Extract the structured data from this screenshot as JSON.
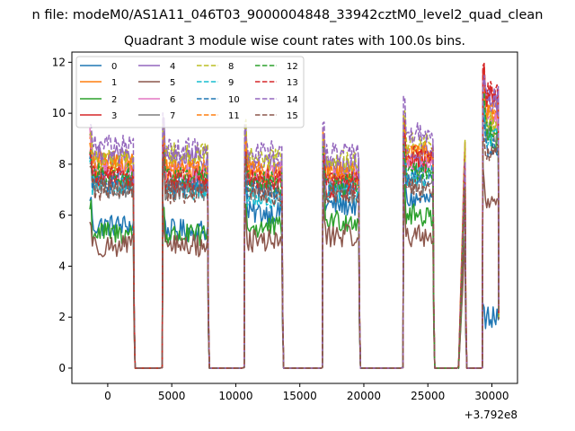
{
  "chart_data": {
    "type": "line",
    "suptitle": "n file: modeM0/AS1A11_046T03_9000004848_33942cztM0_level2_quad_clean",
    "title": "Quadrant 3 module wise count rates with 100.0s bins.",
    "xlabel": "",
    "ylabel": "",
    "x_offset_label": "+3.792e8",
    "xlim": [
      -2800,
      32000
    ],
    "ylim": [
      -0.6,
      12.4
    ],
    "xticks": [
      0,
      5000,
      10000,
      15000,
      20000,
      25000,
      30000
    ],
    "xtick_labels": [
      "0",
      "5000",
      "10000",
      "15000",
      "20000",
      "25000",
      "30000"
    ],
    "yticks": [
      0,
      2,
      4,
      6,
      8,
      10,
      12
    ],
    "ytick_labels": [
      "0",
      "2",
      "4",
      "6",
      "8",
      "10",
      "12"
    ],
    "grid": false,
    "legend": {
      "position": "top-left",
      "columns": 4
    },
    "segments": [
      {
        "start": -1400,
        "end": 2000
      },
      {
        "start": 4300,
        "end": 7800
      },
      {
        "start": 10700,
        "end": 13600
      },
      {
        "start": 16800,
        "end": 19600
      },
      {
        "start": 23100,
        "end": 25400
      },
      {
        "start": 27400,
        "end": 27900
      },
      {
        "start": 29300,
        "end": 30500
      }
    ],
    "gap_level": 0.0,
    "series": [
      {
        "name": "0",
        "color": "#1f77b4",
        "dash": "solid",
        "values": [
          5.6,
          5.4,
          6.1,
          6.4,
          6.6,
          5.0,
          2.0
        ]
      },
      {
        "name": "1",
        "color": "#ff7f0e",
        "dash": "solid",
        "values": [
          8.1,
          7.8,
          7.8,
          7.7,
          8.3,
          8.6,
          10.0
        ]
      },
      {
        "name": "2",
        "color": "#2ca02c",
        "dash": "solid",
        "values": [
          5.3,
          5.2,
          5.5,
          5.8,
          6.0,
          5.2,
          9.0
        ]
      },
      {
        "name": "3",
        "color": "#d62728",
        "dash": "solid",
        "values": [
          7.4,
          7.2,
          7.3,
          7.1,
          8.1,
          9.0,
          10.6
        ]
      },
      {
        "name": "4",
        "color": "#9467bd",
        "dash": "solid",
        "values": [
          8.3,
          8.2,
          8.0,
          7.8,
          8.4,
          7.0,
          10.4
        ]
      },
      {
        "name": "5",
        "color": "#8c564b",
        "dash": "solid",
        "values": [
          4.8,
          4.8,
          5.0,
          5.2,
          5.2,
          5.0,
          6.6
        ]
      },
      {
        "name": "6",
        "color": "#e377c2",
        "dash": "solid",
        "values": [
          7.7,
          7.6,
          7.6,
          7.4,
          7.9,
          7.6,
          9.8
        ]
      },
      {
        "name": "7",
        "color": "#7f7f7f",
        "dash": "solid",
        "values": [
          7.1,
          7.0,
          7.0,
          6.9,
          7.2,
          7.2,
          9.2
        ]
      },
      {
        "name": "8",
        "color": "#bcbd22",
        "dash": "dashed",
        "values": [
          8.2,
          8.4,
          8.2,
          8.1,
          8.8,
          8.8,
          9.6
        ]
      },
      {
        "name": "9",
        "color": "#17becf",
        "dash": "dashed",
        "values": [
          7.2,
          7.0,
          6.7,
          6.9,
          7.5,
          7.4,
          9.0
        ]
      },
      {
        "name": "10",
        "color": "#1f77b4",
        "dash": "dashed",
        "values": [
          7.3,
          7.1,
          7.0,
          7.2,
          7.6,
          7.4,
          8.6
        ]
      },
      {
        "name": "11",
        "color": "#ff7f0e",
        "dash": "dashed",
        "values": [
          7.9,
          7.8,
          7.7,
          7.6,
          8.4,
          8.2,
          10.2
        ]
      },
      {
        "name": "12",
        "color": "#2ca02c",
        "dash": "dashed",
        "values": [
          7.6,
          7.5,
          7.3,
          7.2,
          7.8,
          7.6,
          9.4
        ]
      },
      {
        "name": "13",
        "color": "#d62728",
        "dash": "dashed",
        "values": [
          7.5,
          7.4,
          7.4,
          7.3,
          8.3,
          8.0,
          10.8
        ]
      },
      {
        "name": "14",
        "color": "#9467bd",
        "dash": "dashed",
        "values": [
          8.7,
          8.6,
          8.5,
          8.4,
          9.2,
          8.2,
          10.6
        ]
      },
      {
        "name": "15",
        "color": "#8c564b",
        "dash": "dashed",
        "values": [
          7.0,
          6.9,
          6.8,
          6.8,
          7.0,
          6.9,
          8.4
        ]
      }
    ]
  }
}
